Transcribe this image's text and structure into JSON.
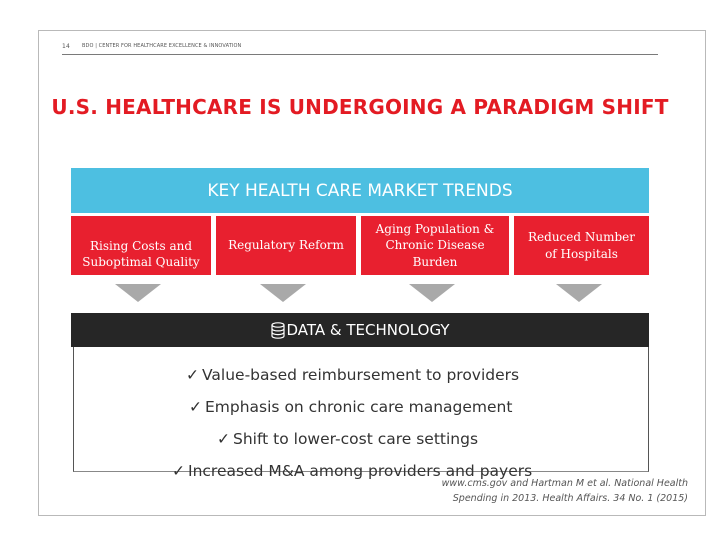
{
  "header": {
    "slide_number": "14",
    "text": "BDO | CENTER FOR HEALTHCARE EXCELLENCE & INNOVATION"
  },
  "title": "U.S. HEALTHCARE IS UNDERGOING A PARADIGM SHIFT",
  "trends": {
    "heading": "KEY HEALTH CARE MARKET TRENDS",
    "items": [
      {
        "label": "Rising Costs and Suboptimal Quality"
      },
      {
        "label": "Regulatory Reform"
      },
      {
        "label": "Aging Population & Chronic Disease Burden"
      },
      {
        "label": "Reduced Number of Hospitals"
      }
    ],
    "colors": {
      "banner": "#4dbfe1",
      "box": "#e8202f",
      "arrow": "#a9a9a9"
    }
  },
  "technology": {
    "icon": "database-icon",
    "label": "DATA & TECHNOLOGY"
  },
  "bullets": [
    "Value-based reimbursement to providers",
    "Emphasis on chronic care management",
    "Shift to lower-cost care settings",
    "Increased M&A among providers and payers"
  ],
  "citation": {
    "line1": "www.cms.gov and Hartman M et al. National Health",
    "line2": "Spending in 2013. Health Affairs. 34 No. 1 (2015)"
  }
}
